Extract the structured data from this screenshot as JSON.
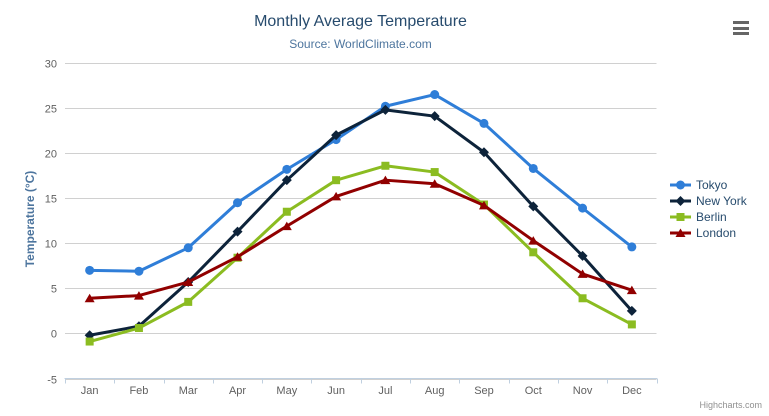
{
  "icons": {
    "export_menu": "hamburger-menu-icon"
  },
  "credits": "Highcharts.com",
  "chart_data": {
    "type": "line",
    "title": "Monthly Average Temperature",
    "subtitle": "Source: WorldClimate.com",
    "categories": [
      "Jan",
      "Feb",
      "Mar",
      "Apr",
      "May",
      "Jun",
      "Jul",
      "Aug",
      "Sep",
      "Oct",
      "Nov",
      "Dec"
    ],
    "series": [
      {
        "name": "Tokyo",
        "color": "#2f7ed8",
        "marker": "circle",
        "values": [
          7.0,
          6.9,
          9.5,
          14.5,
          18.2,
          21.5,
          25.2,
          26.5,
          23.3,
          18.3,
          13.9,
          9.6
        ]
      },
      {
        "name": "New York",
        "color": "#0d233a",
        "marker": "diamond",
        "values": [
          -0.2,
          0.8,
          5.7,
          11.3,
          17.0,
          22.0,
          24.8,
          24.1,
          20.1,
          14.1,
          8.6,
          2.5
        ]
      },
      {
        "name": "Berlin",
        "color": "#8bbc21",
        "marker": "square",
        "values": [
          -0.9,
          0.6,
          3.5,
          8.4,
          13.5,
          17.0,
          18.6,
          17.9,
          14.3,
          9.0,
          3.9,
          1.0
        ]
      },
      {
        "name": "London",
        "color": "#910000",
        "marker": "triangle",
        "values": [
          3.9,
          4.2,
          5.7,
          8.5,
          11.9,
          15.2,
          17.0,
          16.6,
          14.2,
          10.3,
          6.6,
          4.8
        ]
      }
    ],
    "xlabel": "",
    "ylabel": "Temperature (°C)",
    "ylim": [
      -5,
      30
    ],
    "ytick_step": 5,
    "grid": true,
    "legend_position": "right",
    "colors": {
      "title": "#274b6d",
      "subtitle": "#4d759e",
      "axis_labels": "#606060",
      "gridline": "#d0d0d0",
      "axis_line": "#c0d0e0"
    }
  }
}
